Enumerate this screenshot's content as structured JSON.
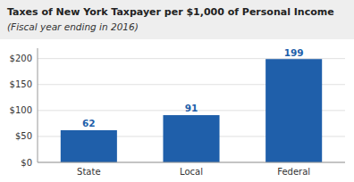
{
  "chart_data": {
    "type": "bar",
    "title": "Taxes of New York Taxpayer per $1,000 of Personal Income",
    "subtitle": "(Fiscal year ending in 2016)",
    "categories": [
      "State",
      "Local",
      "Federal"
    ],
    "values": [
      62,
      91,
      199
    ],
    "color": "#1f5faa",
    "ylim": [
      0,
      220
    ],
    "yticks": [
      {
        "value": 0,
        "label": "$0"
      },
      {
        "value": 50,
        "label": "$50"
      },
      {
        "value": 100,
        "label": "$100"
      },
      {
        "value": 150,
        "label": "$150"
      },
      {
        "value": 200,
        "label": "$200"
      }
    ],
    "grid": true,
    "data_labels": true
  }
}
